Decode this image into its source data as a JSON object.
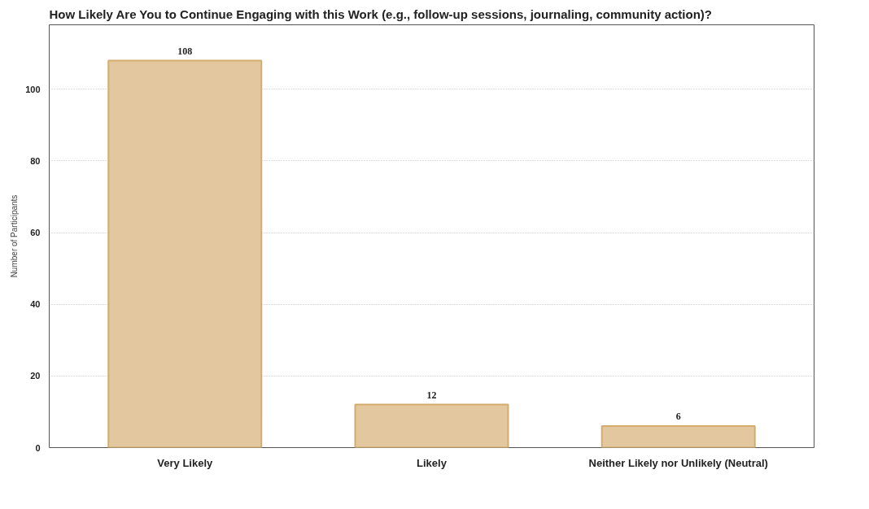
{
  "chart_data": {
    "type": "bar",
    "title": "How Likely Are You to Continue Engaging with this Work (e.g., follow-up sessions, journaling, community action)?",
    "ylabel": "Number of Participants",
    "categories": [
      "Very Likely",
      "Likely",
      "Neither Likely nor Unlikely (Neutral)"
    ],
    "values": [
      108,
      12,
      6
    ],
    "color": "#e3c79f",
    "ylim": [
      0,
      118
    ],
    "yticks": [
      0,
      20,
      40,
      60,
      80,
      100
    ],
    "grid": "y",
    "data_labels": true
  }
}
